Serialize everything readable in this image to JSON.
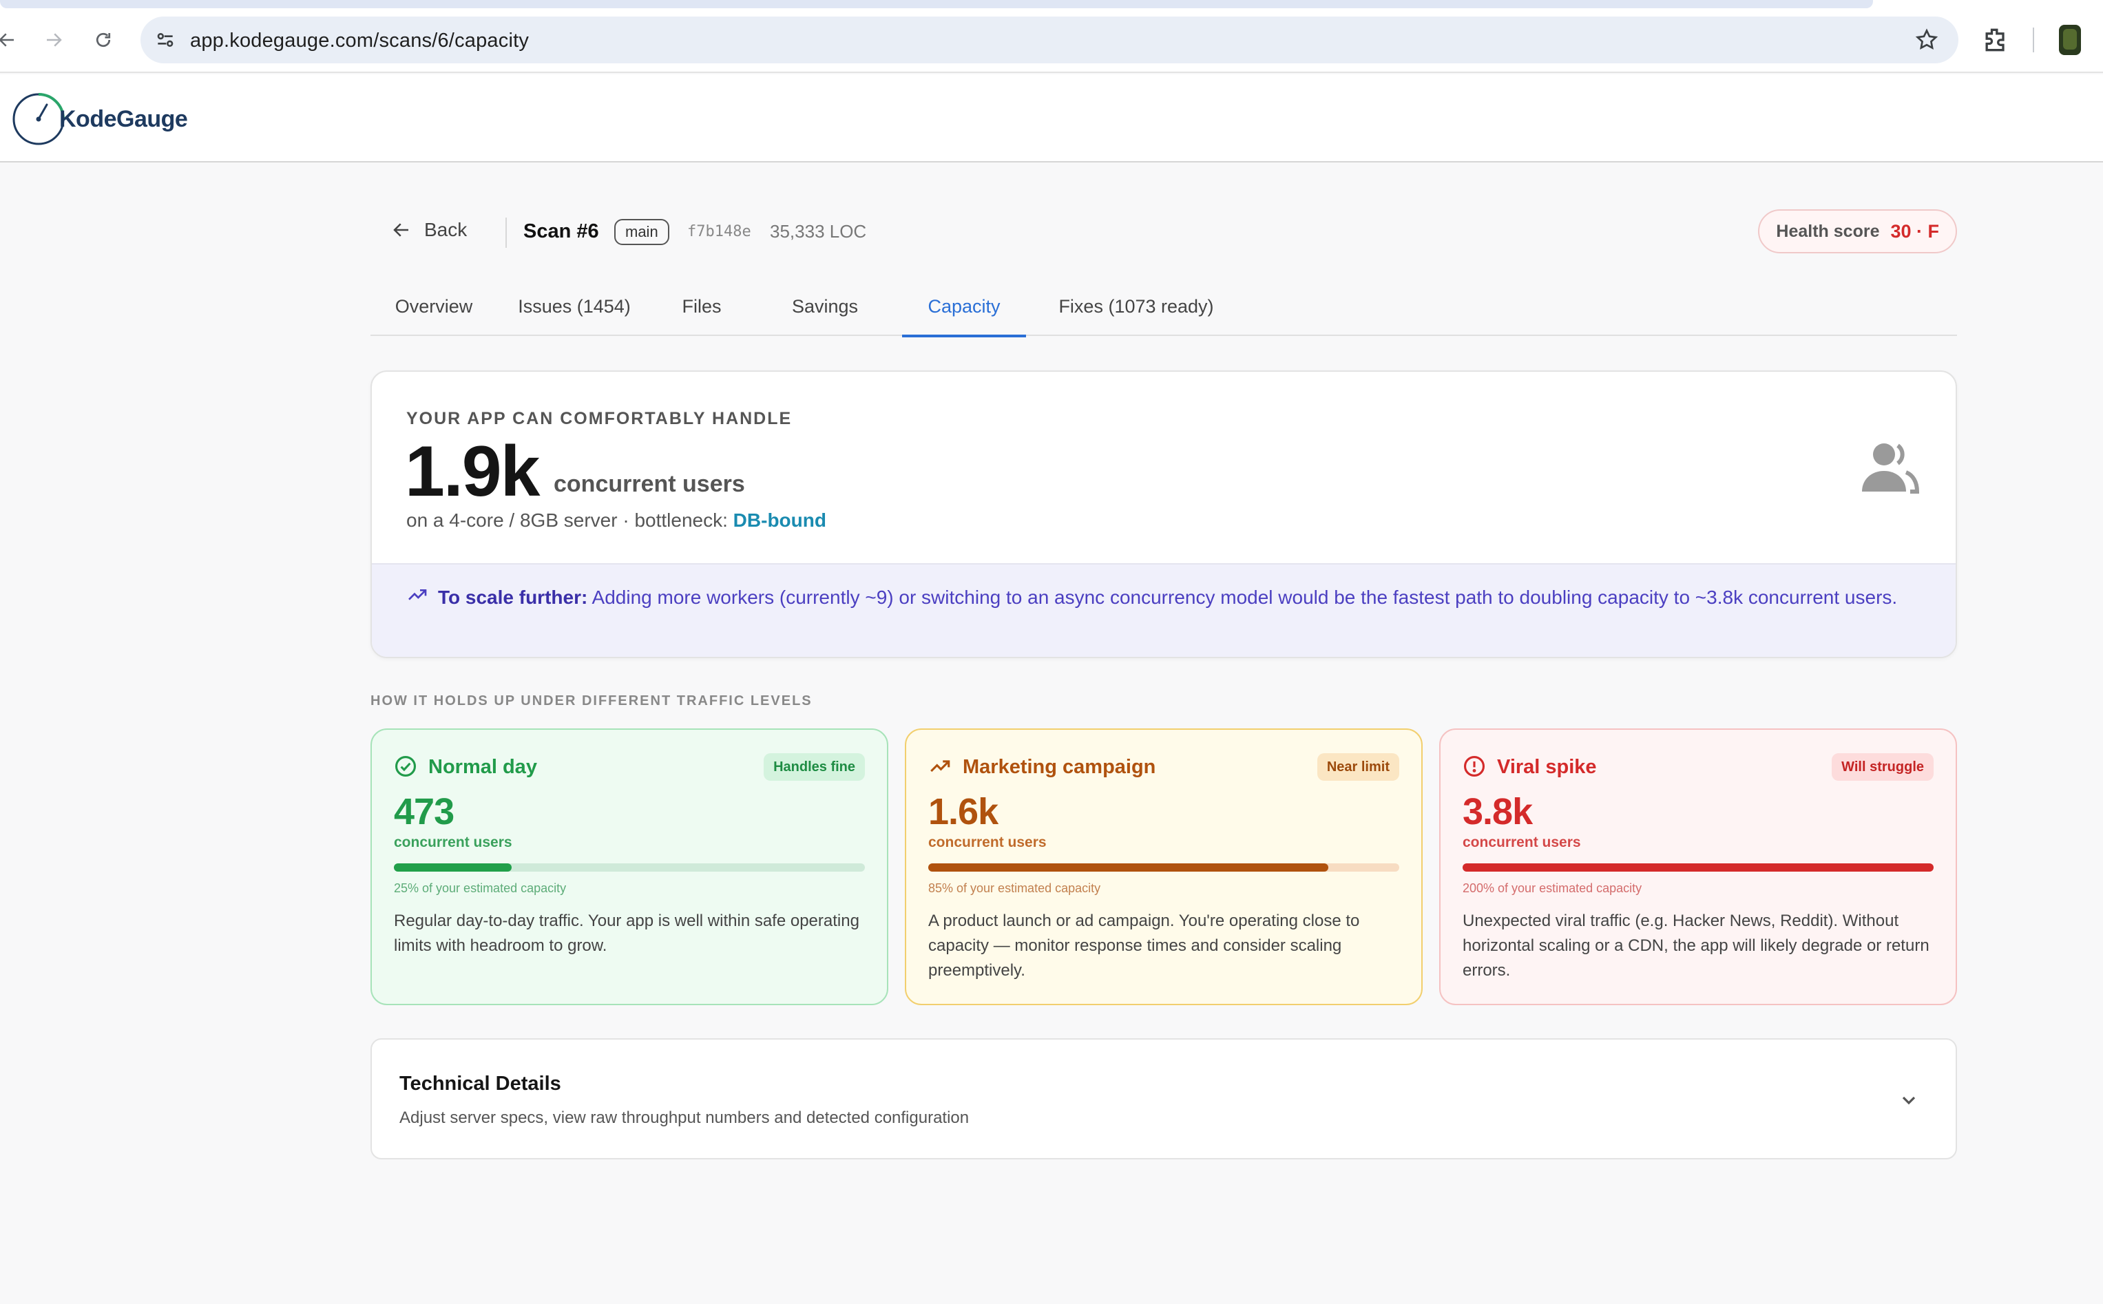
{
  "browser": {
    "url": "app.kodegauge.com/scans/6/capacity",
    "icons": [
      "back-arrow-icon",
      "forward-arrow-icon",
      "reload-icon",
      "site-settings-icon",
      "bookmark-star-icon",
      "extensions-icon"
    ]
  },
  "app": {
    "logo_text": "KodeGauge"
  },
  "scan": {
    "back_label": "Back",
    "title": "Scan #6",
    "branch": "main",
    "commit": "f7b148e",
    "loc": "35,333 LOC",
    "health_label": "Health score",
    "health_value": "30 · F"
  },
  "tabs": [
    {
      "label": "Overview",
      "active": false
    },
    {
      "label": "Issues (1454)",
      "active": false
    },
    {
      "label": "Files",
      "active": false
    },
    {
      "label": "Savings",
      "active": false
    },
    {
      "label": "Capacity",
      "active": true
    },
    {
      "label": "Fixes (1073 ready)",
      "active": false
    }
  ],
  "capacity": {
    "eyebrow": "YOUR APP CAN COMFORTABLY HANDLE",
    "value": "1.9k",
    "unit": "concurrent users",
    "sub_prefix": "on a 4-core / 8GB server · bottleneck: ",
    "bottleneck": "DB-bound",
    "scale_label": "To scale further:",
    "scale_text": " Adding more workers (currently ~9) or switching to an async concurrency model would be the fastest path to doubling capacity to ~3.8k concurrent users."
  },
  "section_label": "HOW IT HOLDS UP UNDER DIFFERENT TRAFFIC LEVELS",
  "scenarios": [
    {
      "title": "Normal day",
      "badge": "Handles fine",
      "value": "473",
      "unit": "concurrent users",
      "pct_label": "25% of your estimated capacity",
      "fill_fraction": 0.25,
      "desc": "Regular day-to-day traffic. Your app is well within safe operating limits with headroom to grow.",
      "icon": "check-circle-icon",
      "accent": "#219b4a"
    },
    {
      "title": "Marketing campaign",
      "badge": "Near limit",
      "value": "1.6k",
      "unit": "concurrent users",
      "pct_label": "85% of your estimated capacity",
      "fill_fraction": 0.85,
      "desc": "A product launch or ad campaign. You're operating close to capacity — monitor response times and consider scaling preemptively.",
      "icon": "trending-up-icon",
      "accent": "#b0520e"
    },
    {
      "title": "Viral spike",
      "badge": "Will struggle",
      "value": "3.8k",
      "unit": "concurrent users",
      "pct_label": "200% of your estimated capacity",
      "fill_fraction": 1.0,
      "desc": "Unexpected viral traffic (e.g. Hacker News, Reddit). Without horizontal scaling or a CDN, the app will likely degrade or return errors.",
      "icon": "alert-circle-icon",
      "accent": "#d42a2a"
    }
  ],
  "technical": {
    "title": "Technical Details",
    "sub": "Adjust server specs, view raw throughput numbers and detected configuration"
  }
}
